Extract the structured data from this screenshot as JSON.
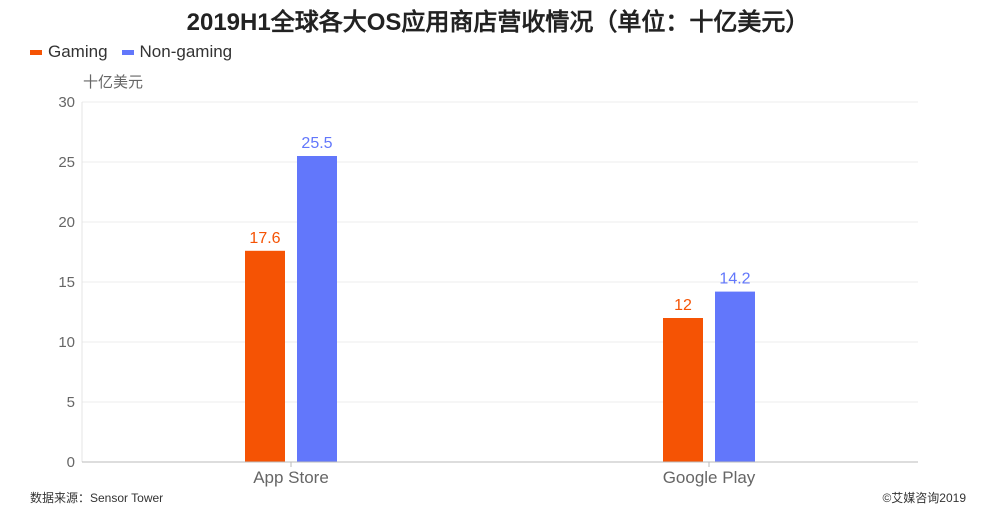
{
  "title": "2019H1全球各大OS应用商店营收情况（单位：十亿美元）",
  "source": "数据来源：Sensor Tower",
  "copyright": "©艾媒咨询2019",
  "colors": {
    "Gaming": "#f55304",
    "Non-gaming": "#6277fb"
  },
  "chart_data": {
    "type": "bar",
    "title": "2019H1全球各大OS应用商店营收情况（单位：十亿美元）",
    "ylabel": "十亿美元",
    "xlabel": "",
    "categories": [
      "App Store",
      "Google Play"
    ],
    "series": [
      {
        "name": "Gaming",
        "values": [
          17.6,
          12
        ]
      },
      {
        "name": "Non-gaming",
        "values": [
          25.5,
          14.2
        ]
      }
    ],
    "ylim": [
      0,
      30
    ],
    "yticks": [
      0,
      5,
      10,
      15,
      20,
      25,
      30
    ],
    "grid": true,
    "legend": "top-left"
  }
}
